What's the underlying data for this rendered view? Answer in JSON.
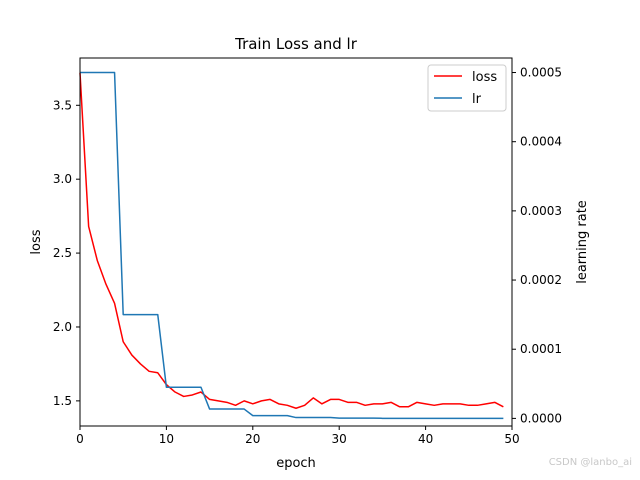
{
  "chart_data": {
    "type": "line",
    "title": "Train Loss and lr",
    "xlabel": "epoch",
    "ylabel": "loss",
    "y2label": "learning rate",
    "xlim": [
      0,
      50
    ],
    "ylim": [
      1.33,
      3.82
    ],
    "y2lim": [
      -1.1e-05,
      0.000521
    ],
    "xticks": [
      "0",
      "10",
      "20",
      "30",
      "40",
      "50"
    ],
    "yticks": [
      "1.5",
      "2.0",
      "2.5",
      "3.0",
      "3.5"
    ],
    "y2ticks": [
      "0.0000",
      "0.0001",
      "0.0002",
      "0.0003",
      "0.0004",
      "0.0005"
    ],
    "legend_position": "top-right",
    "colors": {
      "loss": "#ff0000",
      "lr": "#1f77b4"
    },
    "series": [
      {
        "name": "loss",
        "axis": "left",
        "x": [
          0,
          1,
          2,
          3,
          4,
          5,
          6,
          7,
          8,
          9,
          10,
          11,
          12,
          13,
          14,
          15,
          16,
          17,
          18,
          19,
          20,
          21,
          22,
          23,
          24,
          25,
          26,
          27,
          28,
          29,
          30,
          31,
          32,
          33,
          34,
          35,
          36,
          37,
          38,
          39,
          40,
          41,
          42,
          43,
          44,
          45,
          46,
          47,
          48,
          49
        ],
        "values": [
          3.72,
          2.68,
          2.45,
          2.29,
          2.16,
          1.9,
          1.81,
          1.75,
          1.7,
          1.69,
          1.61,
          1.56,
          1.53,
          1.54,
          1.56,
          1.51,
          1.5,
          1.49,
          1.47,
          1.5,
          1.48,
          1.5,
          1.51,
          1.48,
          1.47,
          1.45,
          1.47,
          1.52,
          1.48,
          1.51,
          1.51,
          1.49,
          1.49,
          1.47,
          1.48,
          1.48,
          1.49,
          1.46,
          1.46,
          1.49,
          1.48,
          1.47,
          1.48,
          1.48,
          1.48,
          1.47,
          1.47,
          1.48,
          1.49,
          1.46
        ]
      },
      {
        "name": "lr",
        "axis": "right",
        "x": [
          0,
          1,
          2,
          3,
          4,
          5,
          6,
          7,
          8,
          9,
          10,
          11,
          12,
          13,
          14,
          15,
          16,
          17,
          18,
          19,
          20,
          21,
          22,
          23,
          24,
          25,
          26,
          27,
          28,
          29,
          30,
          31,
          32,
          33,
          34,
          35,
          36,
          37,
          38,
          39,
          40,
          41,
          42,
          43,
          44,
          45,
          46,
          47,
          48,
          49
        ],
        "values": [
          0.0005,
          0.0005,
          0.0005,
          0.0005,
          0.0005,
          0.00015,
          0.00015,
          0.00015,
          0.00015,
          0.00015,
          4.5e-05,
          4.5e-05,
          4.5e-05,
          4.5e-05,
          4.5e-05,
          1.35e-05,
          1.35e-05,
          1.35e-05,
          1.35e-05,
          1.35e-05,
          4e-06,
          4e-06,
          4e-06,
          4e-06,
          4e-06,
          1.2e-06,
          1.2e-06,
          1.2e-06,
          1.2e-06,
          1.2e-06,
          3.6e-07,
          3.6e-07,
          3.6e-07,
          3.6e-07,
          3.6e-07,
          1e-07,
          1e-07,
          1e-07,
          1e-07,
          1e-07,
          3e-08,
          3e-08,
          3e-08,
          3e-08,
          3e-08,
          1e-08,
          1e-08,
          1e-08,
          1e-08,
          1e-08
        ]
      }
    ]
  },
  "watermark": "CSDN @lanbo_ai"
}
